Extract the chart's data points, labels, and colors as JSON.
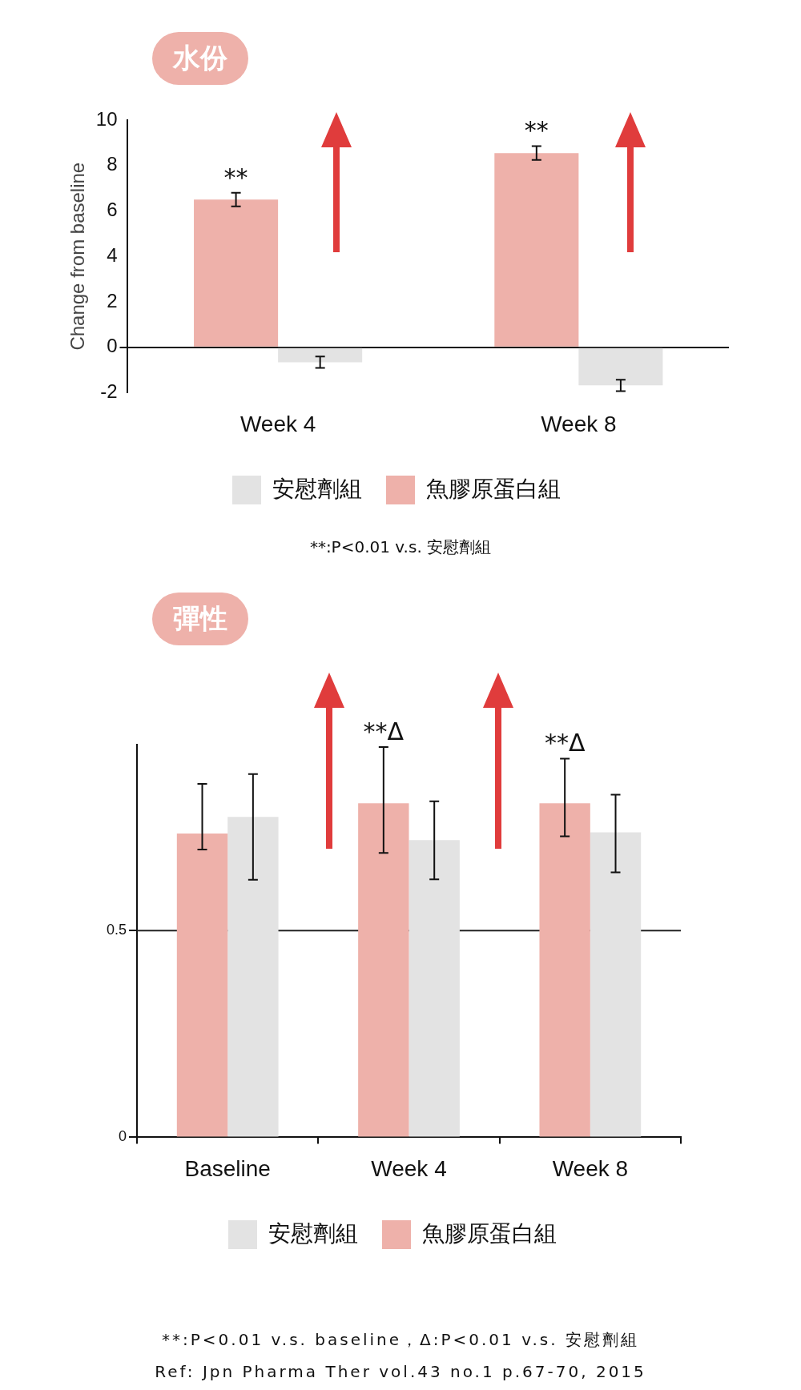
{
  "chart_data": [
    {
      "type": "bar",
      "title": "水份",
      "ylabel": "Change from baseline",
      "categories": [
        "Week 4",
        "Week 8"
      ],
      "series": [
        {
          "name": "魚膠原蛋白組",
          "color": "#eeb1aa",
          "values": [
            6.5,
            8.55
          ],
          "errors": [
            0.3,
            0.3
          ]
        },
        {
          "name": "安慰劑組",
          "color": "#e3e3e3",
          "values": [
            -0.66,
            -1.68
          ],
          "errors": [
            0.25,
            0.25
          ]
        }
      ],
      "ylim": [
        -2,
        10
      ],
      "yticks": [
        -2,
        0,
        2,
        4,
        6,
        8,
        10
      ],
      "legend": "bottom",
      "annotations": [
        {
          "text": "**",
          "x": "Week 4",
          "y": 6.5
        },
        {
          "text": "**",
          "x": "Week 8",
          "y": 8.55
        },
        "**:P<0.01 v.s. 安慰劑組"
      ]
    },
    {
      "type": "bar",
      "title": "彈性",
      "categories": [
        "Baseline",
        "Week 4",
        "Week 8"
      ],
      "series": [
        {
          "name": "魚膠原蛋白組",
          "color": "#eeb1aa",
          "values": [
            0.735,
            0.808,
            0.808
          ],
          "errors": [
            [
              0.696,
              0.855
            ],
            [
              0.688,
              0.944
            ],
            [
              0.728,
              0.916
            ]
          ]
        },
        {
          "name": "安慰劑組",
          "color": "#e3e3e3",
          "values": [
            0.775,
            0.719,
            0.738
          ],
          "errors": [
            [
              0.623,
              0.879
            ],
            [
              0.624,
              0.813
            ],
            [
              0.641,
              0.829
            ]
          ]
        }
      ],
      "ylim": [
        0,
        0.95
      ],
      "yticks": [
        0,
        0.5
      ],
      "legend": "bottom",
      "ref_lines": [
        {
          "axis": "y",
          "value": 0.5,
          "color": "#222222"
        }
      ],
      "annotations": [
        {
          "text": "**Δ",
          "x": "Week 4",
          "y": 0.808
        },
        {
          "text": "**Δ",
          "x": "Week 8",
          "y": 0.808
        },
        "**:P<0.01 v.s. baseline，Δ:P<0.01 v.s. 安慰劑組",
        "Ref: Jpn Pharma Ther vol.43 no.1 p.67-70, 2015"
      ]
    }
  ]
}
